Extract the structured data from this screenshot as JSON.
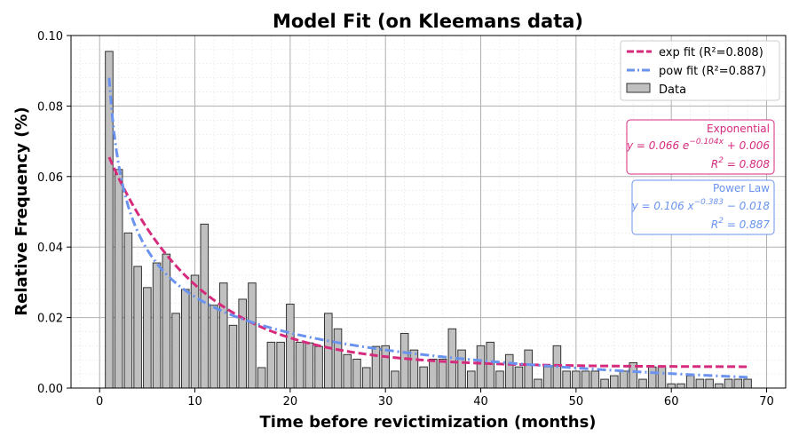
{
  "chart_data": {
    "type": "bar",
    "title": "Model Fit (on Kleemans data)",
    "xlabel": "Time before revictimization (months)",
    "ylabel": "Relative Frequency (%)",
    "xlim": [
      -3,
      72
    ],
    "ylim": [
      0,
      0.1
    ],
    "xticks": [
      "0",
      "10",
      "20",
      "30",
      "40",
      "50",
      "60",
      "70"
    ],
    "yticks": [
      "0.00",
      "0.02",
      "0.04",
      "0.06",
      "0.08",
      "0.10"
    ],
    "grid": true,
    "legend_position": "top-right",
    "series": [
      {
        "name": "Data",
        "kind": "bar",
        "color": "#c0c0c0",
        "x": [
          1,
          2,
          3,
          4,
          5,
          6,
          7,
          8,
          9,
          10,
          11,
          12,
          13,
          14,
          15,
          16,
          17,
          18,
          19,
          20,
          21,
          22,
          23,
          24,
          25,
          26,
          27,
          28,
          29,
          30,
          31,
          32,
          33,
          34,
          35,
          36,
          37,
          38,
          39,
          40,
          41,
          42,
          43,
          44,
          45,
          46,
          47,
          48,
          49,
          50,
          51,
          52,
          53,
          54,
          55,
          56,
          57,
          58,
          59,
          60,
          61,
          62,
          63,
          64,
          65,
          66,
          67,
          68
        ],
        "values": [
          0.0955,
          0.062,
          0.044,
          0.0345,
          0.0285,
          0.0355,
          0.038,
          0.0212,
          0.028,
          0.032,
          0.0465,
          0.0235,
          0.0298,
          0.0178,
          0.0252,
          0.0298,
          0.0058,
          0.013,
          0.013,
          0.0238,
          0.013,
          0.0128,
          0.0118,
          0.0212,
          0.0168,
          0.0095,
          0.0082,
          0.0058,
          0.0118,
          0.012,
          0.0048,
          0.0155,
          0.0108,
          0.006,
          0.0082,
          0.0082,
          0.0168,
          0.0108,
          0.0048,
          0.012,
          0.013,
          0.0048,
          0.0095,
          0.006,
          0.0108,
          0.0025,
          0.006,
          0.012,
          0.0048,
          0.0048,
          0.0048,
          0.0048,
          0.0025,
          0.0035,
          0.0048,
          0.0072,
          0.0025,
          0.006,
          0.006,
          0.0012,
          0.0012,
          0.0035,
          0.0025,
          0.0025,
          0.0012,
          0.0025,
          0.0025,
          0.0025
        ]
      },
      {
        "name": "exp fit (R²=0.808)",
        "kind": "line",
        "color": "#d62a7d",
        "model": "exponential",
        "params": {
          "a": 0.066,
          "b": -0.104,
          "c": 0.006
        }
      },
      {
        "name": "pow fit (R²=0.887)",
        "kind": "line",
        "color": "#6a93ef",
        "model": "power",
        "params": {
          "a": 0.106,
          "b": -0.383,
          "c": -0.018
        }
      }
    ],
    "annotations": [
      {
        "title": "Exponential",
        "equation": "y = 0.066 e^{−0.104x} + 0.006",
        "eq_coef": "y = 0.066 e",
        "eq_exp": "−0.104x",
        "eq_tail": " + 0.006",
        "r2_label": "R",
        "r2_exp": "2",
        "r2_value": " = 0.808",
        "color": "#d62a7d"
      },
      {
        "title": "Power Law",
        "equation": "y = 0.106 x^{−0.383} − 0.018",
        "eq_coef": "y = 0.106 x",
        "eq_exp": "−0.383",
        "eq_tail": " − 0.018",
        "r2_label": "R",
        "r2_exp": "2",
        "r2_value": " = 0.887",
        "color": "#6a93ef"
      }
    ]
  }
}
